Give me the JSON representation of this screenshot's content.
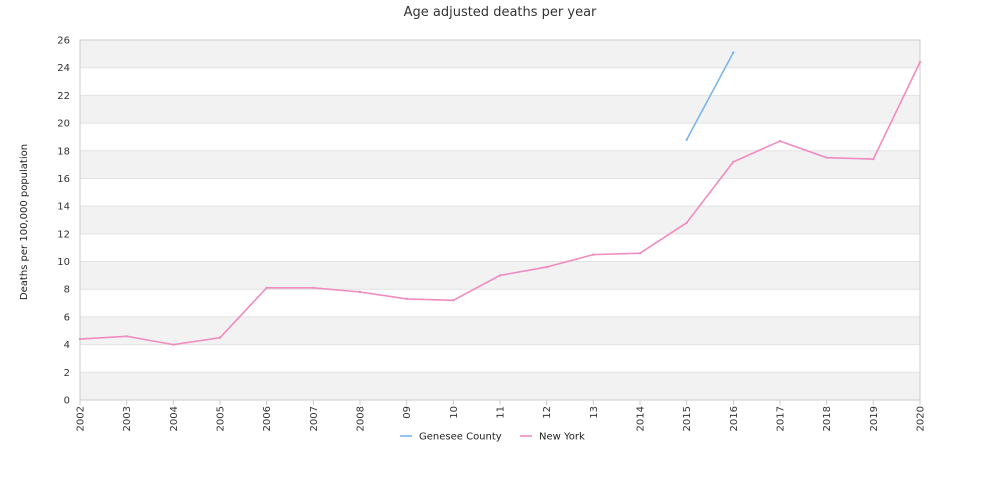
{
  "chart_data": {
    "type": "line",
    "title": "Age adjusted deaths per year",
    "xlabel": "",
    "ylabel": "Deaths per 100,000 population",
    "categories": [
      "2002",
      "2003",
      "2004",
      "2005",
      "2006",
      "2007",
      "2008",
      "09",
      "10",
      "11",
      "12",
      "13",
      "2014",
      "2015",
      "2016",
      "2017",
      "2018",
      "2019",
      "2020"
    ],
    "ylim": [
      0,
      26
    ],
    "yticks": [
      0,
      2,
      4,
      6,
      8,
      10,
      12,
      14,
      16,
      18,
      20,
      22,
      24,
      26
    ],
    "grid": true,
    "band_colors": [
      "#f2f2f2",
      "#ffffff"
    ],
    "legend_position": "bottom-center",
    "series": [
      {
        "name": "Genesee County",
        "color": "#7cb5ec",
        "values": [
          null,
          null,
          null,
          null,
          null,
          null,
          null,
          null,
          null,
          null,
          null,
          null,
          null,
          18.8,
          25.1,
          null,
          null,
          null,
          null
        ]
      },
      {
        "name": "New York",
        "color": "#f08cbf",
        "values": [
          4.4,
          4.6,
          4.0,
          4.5,
          8.1,
          8.1,
          7.8,
          7.3,
          7.2,
          9.0,
          9.6,
          10.5,
          10.6,
          12.8,
          17.2,
          18.7,
          17.5,
          17.4,
          24.4
        ]
      }
    ]
  }
}
